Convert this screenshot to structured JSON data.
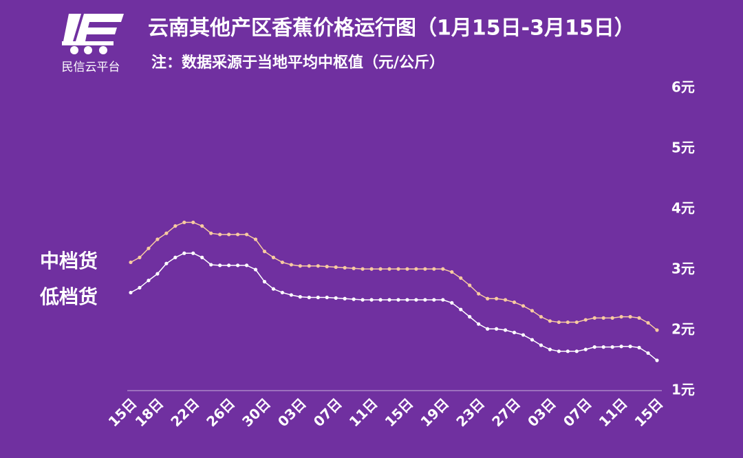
{
  "brand": "民信云平台",
  "chart_data": {
    "type": "line",
    "title": "云南其他产区香蕉价格运行图（1月15日-3月15日）",
    "subtitle": "注：数据采源于当地平均中枢值（元/公斤）",
    "categories": [
      "15日",
      null,
      null,
      "18日",
      null,
      null,
      null,
      "22日",
      null,
      null,
      null,
      "26日",
      null,
      null,
      null,
      "30日",
      null,
      null,
      null,
      "03日",
      null,
      null,
      null,
      "07日",
      null,
      null,
      null,
      "11日",
      null,
      null,
      null,
      "15日",
      null,
      null,
      null,
      "19日",
      null,
      null,
      null,
      "23日",
      null,
      null,
      null,
      "27日",
      null,
      null,
      null,
      "03日",
      null,
      null,
      null,
      "07日",
      null,
      null,
      null,
      "11日",
      null,
      null,
      null,
      "15日"
    ],
    "series": [
      {
        "name": "中档货",
        "color": "#f8cba0",
        "values": [
          3.12,
          3.2,
          3.35,
          3.5,
          3.6,
          3.72,
          3.78,
          3.78,
          3.72,
          3.6,
          3.58,
          3.58,
          3.58,
          3.58,
          3.5,
          3.3,
          3.2,
          3.12,
          3.08,
          3.06,
          3.06,
          3.06,
          3.05,
          3.04,
          3.03,
          3.02,
          3.01,
          3.01,
          3.01,
          3.01,
          3.01,
          3.01,
          3.01,
          3.01,
          3.01,
          3.01,
          2.96,
          2.86,
          2.74,
          2.6,
          2.52,
          2.52,
          2.5,
          2.46,
          2.4,
          2.32,
          2.22,
          2.15,
          2.13,
          2.13,
          2.13,
          2.17,
          2.2,
          2.2,
          2.2,
          2.22,
          2.22,
          2.2,
          2.12,
          2.0
        ]
      },
      {
        "name": "低档货",
        "color": "#ffffff",
        "values": [
          2.62,
          2.7,
          2.82,
          2.93,
          3.1,
          3.2,
          3.27,
          3.27,
          3.2,
          3.08,
          3.07,
          3.07,
          3.07,
          3.07,
          3.0,
          2.8,
          2.68,
          2.62,
          2.58,
          2.55,
          2.54,
          2.54,
          2.54,
          2.53,
          2.52,
          2.51,
          2.5,
          2.5,
          2.5,
          2.5,
          2.5,
          2.5,
          2.5,
          2.5,
          2.5,
          2.5,
          2.45,
          2.34,
          2.22,
          2.1,
          2.02,
          2.02,
          2.0,
          1.96,
          1.92,
          1.84,
          1.75,
          1.68,
          1.65,
          1.65,
          1.65,
          1.68,
          1.72,
          1.72,
          1.72,
          1.73,
          1.73,
          1.71,
          1.62,
          1.5
        ]
      }
    ],
    "ylim": [
      1,
      6
    ],
    "yticks": [
      {
        "value": 1,
        "label": "1元"
      },
      {
        "value": 2,
        "label": "2元"
      },
      {
        "value": 3,
        "label": "3元"
      },
      {
        "value": 4,
        "label": "4元"
      },
      {
        "value": 5,
        "label": "5元"
      },
      {
        "value": 6,
        "label": "6元"
      }
    ]
  }
}
